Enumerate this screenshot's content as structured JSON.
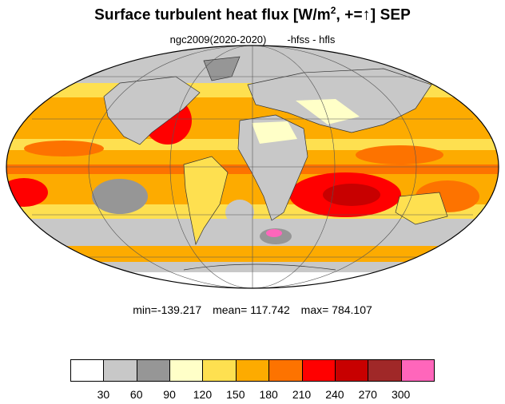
{
  "title": {
    "main": "Surface turbulent heat flux [W/m",
    "sup": "2",
    "tail": ", +=",
    "arrow": "↑",
    "close": "]  SEP"
  },
  "subtitle": {
    "run": "ngc2009(2020-2020)",
    "vars": "-hfss - hfls"
  },
  "stats": {
    "min": "min=-139.217",
    "mean": "mean= 117.742",
    "max": "max= 784.107"
  },
  "colorbar": {
    "colors": [
      "#ffffff",
      "#c8c8c8",
      "#969696",
      "#ffffc8",
      "#fee050",
      "#fdab00",
      "#fd7300",
      "#ff0000",
      "#c80000",
      "#a02828",
      "#ff66bb"
    ],
    "labels": [
      "30",
      "60",
      "90",
      "120",
      "150",
      "180",
      "210",
      "240",
      "270",
      "300"
    ]
  },
  "map": {
    "projection": "mollweide",
    "ocean_colors": {
      "cold": "#969696",
      "cool": "#c8c8c8",
      "mild": "#ffffc8",
      "warm": "#fee050",
      "hot": "#fdab00",
      "hotter": "#fd7300",
      "peak": "#ff0000",
      "extreme": "#c80000",
      "max": "#ff66bb"
    }
  }
}
